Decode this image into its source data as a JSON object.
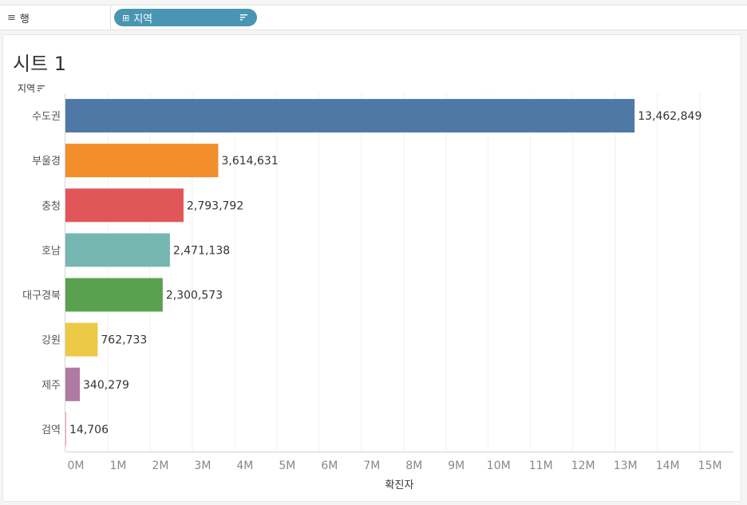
{
  "shelf": {
    "rows_label": "행",
    "rows_icon": "rows-icon",
    "pill_label": "지역",
    "pill_prefix_icon": "plus-icon",
    "pill_sort_icon": "sort-icon"
  },
  "sheet": {
    "title": "시트 1",
    "axis_header": "지역"
  },
  "chart_data": {
    "type": "bar",
    "orientation": "horizontal",
    "categories": [
      "수도권",
      "부울경",
      "충청",
      "호남",
      "대구경북",
      "강원",
      "제주",
      "검역"
    ],
    "values": [
      13462849,
      3614631,
      2793792,
      2471138,
      2300573,
      762733,
      340279,
      14706
    ],
    "value_labels": [
      "13,462,849",
      "3,614,631",
      "2,793,792",
      "2,471,138",
      "2,300,573",
      "762,733",
      "340,279",
      "14,706"
    ],
    "colors": [
      "#4e79a7",
      "#f28e2b",
      "#e15759",
      "#76b7b2",
      "#59a14f",
      "#edc948",
      "#b07aa1",
      "#ff9da7"
    ],
    "xlabel": "확진자",
    "ylabel": "지역",
    "xticks": [
      0,
      1000000,
      2000000,
      3000000,
      4000000,
      5000000,
      6000000,
      7000000,
      8000000,
      9000000,
      10000000,
      11000000,
      12000000,
      13000000,
      14000000,
      15000000
    ],
    "xtick_labels": [
      "0M",
      "1M",
      "2M",
      "3M",
      "4M",
      "5M",
      "6M",
      "7M",
      "8M",
      "9M",
      "10M",
      "11M",
      "12M",
      "13M",
      "14M",
      "15M"
    ],
    "xlim": [
      0,
      15800000
    ],
    "grid": true
  }
}
